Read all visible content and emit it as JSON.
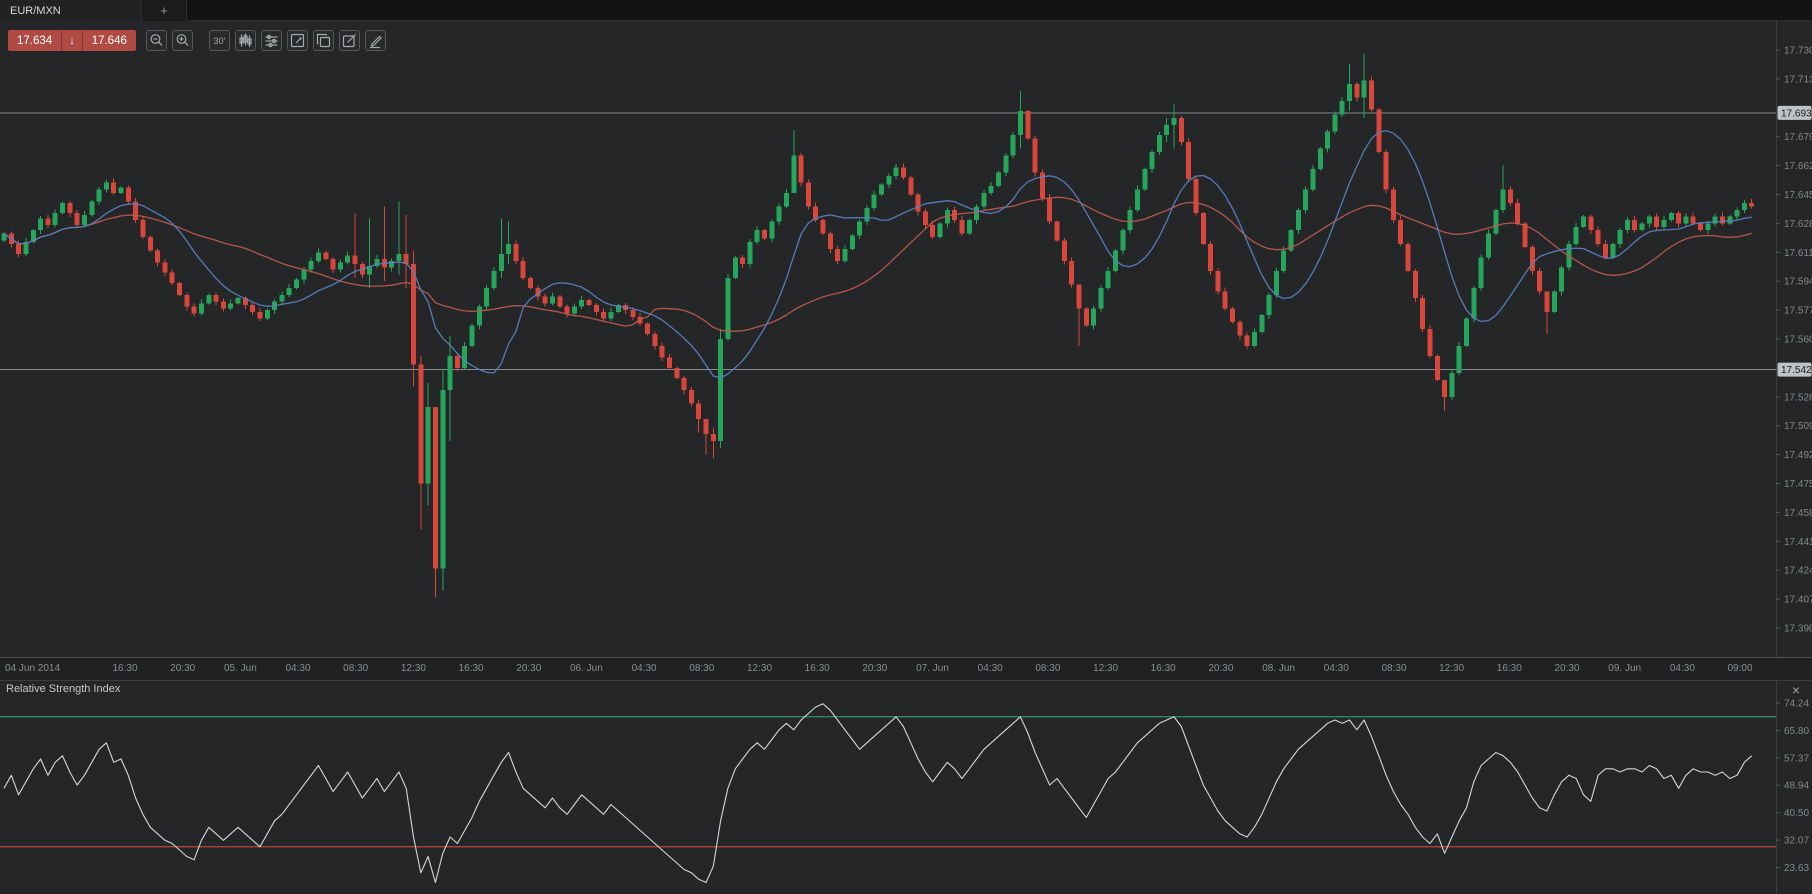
{
  "window": {
    "tab_label": "EUR/MXN",
    "new_tab_label": "+"
  },
  "toolbar": {
    "bid": "17.634",
    "ask": "17.646",
    "direction_arrow": "↓",
    "buttons": [
      {
        "name": "zoom-out"
      },
      {
        "name": "zoom-in"
      },
      {
        "name": "timeframe-30m",
        "label": "30'"
      },
      {
        "name": "chart-type-candles"
      },
      {
        "name": "indicator-settings"
      },
      {
        "name": "expand-chart"
      },
      {
        "name": "duplicate-chart"
      },
      {
        "name": "edit-chart"
      },
      {
        "name": "draw-tools"
      }
    ]
  },
  "colors": {
    "up": "#26a65c",
    "down": "#d9473c",
    "ma_fast": "#5b7fc0",
    "ma_slow": "#bd5a4e",
    "level_line": "#9a9da0",
    "badge_bg": "#c0c3c5",
    "badge_text": "#18191a",
    "axis_text": "#85898c",
    "quote_bg": "#b04b44",
    "rsi_line": "#d6d6d6",
    "rsi_upper": "#3c8f5c",
    "rsi_lower": "#c2443a"
  },
  "chart_data": {
    "type": "candlestick",
    "symbol": "EUR/MXN",
    "interval": "30m",
    "levels": [
      {
        "label": "17.693",
        "value": 17.693
      },
      {
        "label": "17.542",
        "value": 17.542
      }
    ],
    "price_axis": {
      "labels": [
        "17.730",
        "17.713",
        "17.679",
        "17.662",
        "17.645",
        "17.628",
        "17.611",
        "17.594",
        "17.577",
        "17.560",
        "17.526",
        "17.509",
        "17.492",
        "17.475",
        "17.458",
        "17.441",
        "17.424",
        "17.407",
        "17.390"
      ],
      "range": [
        17.39,
        17.73
      ]
    },
    "time_axis": {
      "labels": [
        "04 Jun 2014",
        "16:30",
        "20:30",
        "05. Jun",
        "04:30",
        "08:30",
        "12:30",
        "16:30",
        "20:30",
        "06. Jun",
        "04:30",
        "08:30",
        "12:30",
        "16:30",
        "20:30",
        "07. Jun",
        "04:30",
        "08:30",
        "12:30",
        "16:30",
        "20:30",
        "08. Jun",
        "04:30",
        "08:30",
        "12:30",
        "16:30",
        "20:30",
        "09. Jun",
        "04:30",
        "09:00"
      ]
    },
    "indicators": {
      "sma_fast": {
        "type": "sma",
        "period": 12
      },
      "sma_slow": {
        "type": "sma",
        "period": 30
      }
    },
    "candles": {
      "first_open": 17.618,
      "closes": [
        17.622,
        17.616,
        17.61,
        17.617,
        17.624,
        17.631,
        17.627,
        17.634,
        17.64,
        17.634,
        17.627,
        17.633,
        17.641,
        17.648,
        17.652,
        17.646,
        17.649,
        17.641,
        17.63,
        17.62,
        17.612,
        17.605,
        17.599,
        17.593,
        17.586,
        17.579,
        17.575,
        17.581,
        17.586,
        17.582,
        17.578,
        17.581,
        17.584,
        17.58,
        17.576,
        17.572,
        17.577,
        17.582,
        17.586,
        17.59,
        17.595,
        17.601,
        17.606,
        17.611,
        17.607,
        17.601,
        17.605,
        17.609,
        17.604,
        17.598,
        17.603,
        17.607,
        17.602,
        17.606,
        17.61,
        17.604,
        17.545,
        17.475,
        17.52,
        17.425,
        17.53,
        17.55,
        17.543,
        17.556,
        17.568,
        17.579,
        17.59,
        17.6,
        17.61,
        17.616,
        17.606,
        17.596,
        17.59,
        17.585,
        17.581,
        17.585,
        17.579,
        17.575,
        17.579,
        17.583,
        17.58,
        17.576,
        17.572,
        17.576,
        17.58,
        17.577,
        17.573,
        17.569,
        17.563,
        17.556,
        17.549,
        17.543,
        17.537,
        17.53,
        17.522,
        17.513,
        17.504,
        17.5,
        17.56,
        17.596,
        17.608,
        17.604,
        17.617,
        17.624,
        17.619,
        17.629,
        17.638,
        17.646,
        17.668,
        17.652,
        17.638,
        17.63,
        17.622,
        17.613,
        17.606,
        17.613,
        17.621,
        17.629,
        17.637,
        17.645,
        17.651,
        17.656,
        17.661,
        17.655,
        17.645,
        17.635,
        17.627,
        17.62,
        17.628,
        17.636,
        17.63,
        17.622,
        17.63,
        17.638,
        17.646,
        17.65,
        17.658,
        17.668,
        17.68,
        17.694,
        17.678,
        17.658,
        17.643,
        17.629,
        17.618,
        17.606,
        17.592,
        17.578,
        17.568,
        17.578,
        17.59,
        17.6,
        17.612,
        17.624,
        17.636,
        17.648,
        17.66,
        17.67,
        17.68,
        17.686,
        17.69,
        17.676,
        17.654,
        17.634,
        17.616,
        17.6,
        17.588,
        17.578,
        17.57,
        17.562,
        17.556,
        17.564,
        17.574,
        17.586,
        17.6,
        17.612,
        17.624,
        17.636,
        17.648,
        17.66,
        17.672,
        17.682,
        17.692,
        17.7,
        17.71,
        17.702,
        17.712,
        17.695,
        17.67,
        17.648,
        17.63,
        17.616,
        17.6,
        17.584,
        17.566,
        17.55,
        17.536,
        17.526,
        17.54,
        17.556,
        17.572,
        17.59,
        17.608,
        17.622,
        17.636,
        17.648,
        17.64,
        17.628,
        17.614,
        17.6,
        17.588,
        17.576,
        17.588,
        17.602,
        17.616,
        17.626,
        17.632,
        17.624,
        17.616,
        17.608,
        17.616,
        17.624,
        17.63,
        17.624,
        17.628,
        17.632,
        17.626,
        17.63,
        17.634,
        17.628,
        17.632,
        17.628,
        17.624,
        17.628,
        17.632,
        17.628,
        17.632,
        17.636,
        17.64,
        17.638
      ],
      "wick_overrides": {
        "48": [
          17.634,
          17.596
        ],
        "50": [
          17.631,
          17.59
        ],
        "52": [
          17.638,
          17.594
        ],
        "54": [
          17.641,
          17.598
        ],
        "55": [
          17.633,
          17.59
        ],
        "56": [
          17.612,
          17.532
        ],
        "57": [
          17.55,
          17.448
        ],
        "58": [
          17.534,
          17.462
        ],
        "59": [
          17.512,
          17.408
        ],
        "60": [
          17.542,
          17.412
        ],
        "61": [
          17.562,
          17.5
        ],
        "68": [
          17.631,
          17.596
        ],
        "69": [
          17.629,
          17.604
        ],
        "95": [
          17.524,
          17.505
        ],
        "96": [
          17.513,
          17.492
        ],
        "97": [
          17.508,
          17.49
        ],
        "98": [
          17.566,
          17.496
        ],
        "108": [
          17.683,
          17.648
        ],
        "139": [
          17.706,
          17.672
        ],
        "147": [
          17.584,
          17.556
        ],
        "159": [
          17.69,
          17.676
        ],
        "160": [
          17.698,
          17.672
        ],
        "184": [
          17.722,
          17.694
        ],
        "186": [
          17.728,
          17.69
        ],
        "197": [
          17.532,
          17.518
        ],
        "205": [
          17.662,
          17.634
        ],
        "211": [
          17.582,
          17.563
        ]
      }
    }
  },
  "rsi": {
    "title": "Relative Strength Index",
    "close_label": "×",
    "upper_level": {
      "value": 70
    },
    "lower_level": {
      "value": 30
    },
    "axis_labels": [
      "74.24",
      "65.80",
      "57.37",
      "48.94",
      "40.50",
      "32.07",
      "23.63"
    ],
    "values": [
      48,
      52,
      46,
      50,
      54,
      57,
      52,
      56,
      58,
      53,
      49,
      52,
      56,
      60,
      62,
      56,
      57,
      52,
      45,
      40,
      36,
      34,
      32,
      31,
      29,
      27,
      26,
      32,
      36,
      34,
      32,
      34,
      36,
      34,
      32,
      30,
      34,
      38,
      40,
      43,
      46,
      49,
      52,
      55,
      51,
      47,
      50,
      53,
      49,
      45,
      48,
      51,
      47,
      50,
      53,
      48,
      33,
      22,
      27,
      19,
      28,
      33,
      31,
      35,
      39,
      44,
      48,
      52,
      56,
      59,
      53,
      48,
      46,
      44,
      42,
      45,
      42,
      40,
      43,
      46,
      44,
      42,
      40,
      43,
      41,
      39,
      37,
      35,
      33,
      31,
      29,
      27,
      25,
      23,
      22,
      20,
      19,
      24,
      38,
      48,
      54,
      57,
      60,
      62,
      60,
      63,
      66,
      68,
      66,
      69,
      71,
      73,
      74,
      72,
      69,
      66,
      63,
      60,
      62,
      64,
      66,
      68,
      70,
      67,
      62,
      57,
      53,
      50,
      53,
      56,
      54,
      51,
      54,
      57,
      60,
      62,
      64,
      66,
      68,
      70,
      65,
      59,
      54,
      49,
      51,
      48,
      45,
      42,
      39,
      43,
      47,
      51,
      53,
      56,
      59,
      62,
      64,
      66,
      68,
      69,
      70,
      67,
      61,
      55,
      49,
      45,
      41,
      38,
      36,
      34,
      33,
      36,
      40,
      45,
      50,
      54,
      57,
      60,
      62,
      64,
      66,
      68,
      69,
      68,
      69,
      66,
      69,
      64,
      58,
      52,
      47,
      43,
      40,
      36,
      33,
      31,
      34,
      28,
      33,
      38,
      42,
      50,
      55,
      57,
      59,
      58,
      56,
      53,
      49,
      45,
      42,
      41,
      46,
      50,
      52,
      51,
      46,
      44,
      52,
      54,
      54,
      53,
      54,
      54,
      53,
      55,
      54,
      51,
      52,
      48,
      52,
      54,
      53,
      53,
      52,
      53,
      51,
      52,
      56,
      58
    ]
  }
}
